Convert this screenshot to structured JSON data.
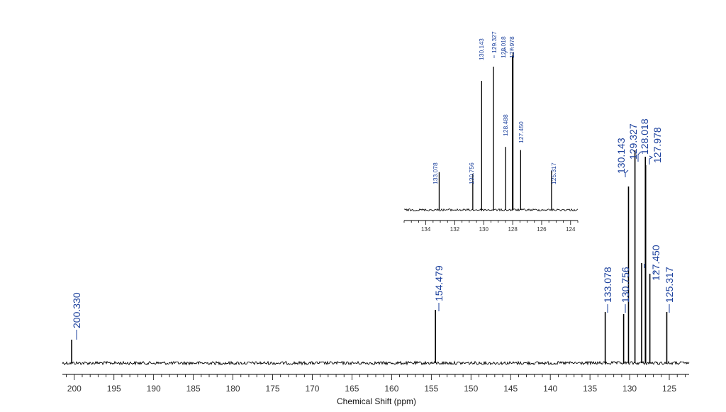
{
  "chart_data": [
    {
      "type": "line",
      "title": "",
      "xlabel": "Chemical Shift (ppm)",
      "xlim": [
        201.5,
        122.5
      ],
      "x_reversed": true,
      "x_ticks": [
        200,
        195,
        190,
        185,
        180,
        175,
        170,
        165,
        160,
        155,
        150,
        145,
        140,
        135,
        130,
        125
      ],
      "grid": false,
      "peaks": [
        {
          "x": 200.33,
          "height": 0.11,
          "label": "200.330"
        },
        {
          "x": 154.479,
          "height": 0.25,
          "label": "154.479"
        },
        {
          "x": 133.078,
          "height": 0.24,
          "label": "133.078"
        },
        {
          "x": 130.756,
          "height": 0.23,
          "label": "130.756"
        },
        {
          "x": 130.143,
          "height": 0.83,
          "label": "130.143"
        },
        {
          "x": 129.327,
          "height": 1.0,
          "label": "129.327"
        },
        {
          "x": 128.488,
          "height": 0.47,
          "label": ""
        },
        {
          "x": 128.018,
          "height": 0.97,
          "label": "128.018"
        },
        {
          "x": 127.978,
          "height": 0.93,
          "label": "127.978"
        },
        {
          "x": 127.45,
          "height": 0.42,
          "label": "127.450"
        },
        {
          "x": 125.317,
          "height": 0.24,
          "label": "125.317"
        }
      ]
    },
    {
      "type": "line",
      "title": "",
      "xlabel": "",
      "xlim": [
        135.5,
        123.5
      ],
      "x_reversed": true,
      "x_ticks": [
        134,
        132,
        130,
        128,
        126,
        124
      ],
      "grid": false,
      "peaks": [
        {
          "x": 133.078,
          "height": 0.24,
          "label": "133.078"
        },
        {
          "x": 130.756,
          "height": 0.23,
          "label": "130.756"
        },
        {
          "x": 130.143,
          "height": 0.82,
          "label": "130.143"
        },
        {
          "x": 129.327,
          "height": 0.91,
          "label": "129.327"
        },
        {
          "x": 128.488,
          "height": 0.4,
          "label": "128.488"
        },
        {
          "x": 128.018,
          "height": 0.98,
          "label": "128.018"
        },
        {
          "x": 127.978,
          "height": 1.0,
          "label": "127.978"
        },
        {
          "x": 127.45,
          "height": 0.38,
          "label": "127.450"
        },
        {
          "x": 125.317,
          "height": 0.25,
          "label": "125.317"
        }
      ]
    }
  ]
}
